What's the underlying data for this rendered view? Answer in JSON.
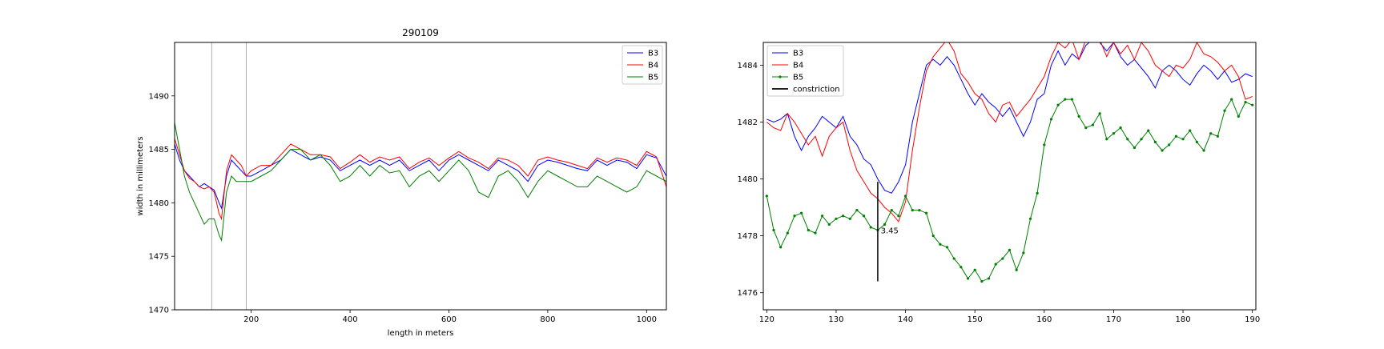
{
  "chart_data": [
    {
      "type": "line",
      "title": "290109",
      "xlabel": "length in meters",
      "ylabel": "width in millimeters",
      "xlim": [
        45,
        1040
      ],
      "ylim": [
        1470,
        1495
      ],
      "xticks": [
        200,
        400,
        600,
        800,
        1000
      ],
      "yticks": [
        1470,
        1475,
        1480,
        1485,
        1490
      ],
      "vlines": [
        120,
        190
      ],
      "legend_position": "upper right",
      "grid": false,
      "series": [
        {
          "name": "B3",
          "color": "#0000ff",
          "x": [
            45,
            55,
            65,
            75,
            85,
            95,
            105,
            115,
            125,
            135,
            140,
            150,
            160,
            170,
            180,
            190,
            200,
            220,
            240,
            260,
            280,
            300,
            320,
            340,
            360,
            380,
            400,
            420,
            440,
            460,
            480,
            500,
            520,
            540,
            560,
            580,
            600,
            620,
            640,
            660,
            680,
            700,
            720,
            740,
            760,
            780,
            800,
            820,
            840,
            860,
            880,
            900,
            920,
            940,
            960,
            980,
            1000,
            1020,
            1040
          ],
          "y": [
            1485.5,
            1484,
            1483,
            1482.5,
            1482,
            1481.5,
            1481.8,
            1481.5,
            1481.2,
            1480,
            1479.5,
            1482.5,
            1484,
            1483.5,
            1483,
            1482.5,
            1482.5,
            1483,
            1483.5,
            1484,
            1485,
            1484.5,
            1484,
            1484.3,
            1484,
            1483,
            1483.5,
            1484,
            1483.5,
            1484,
            1483.5,
            1484,
            1483,
            1483.5,
            1484,
            1483,
            1484,
            1484.5,
            1484,
            1483.5,
            1483,
            1484,
            1483.5,
            1483,
            1482,
            1483.5,
            1484,
            1483.8,
            1483.5,
            1483.2,
            1483,
            1484,
            1483.5,
            1484,
            1483.8,
            1483.2,
            1484.5,
            1484.2,
            1482.5
          ]
        },
        {
          "name": "B4",
          "color": "#ff0000",
          "x": [
            45,
            55,
            65,
            75,
            85,
            95,
            105,
            115,
            125,
            135,
            140,
            150,
            160,
            170,
            180,
            190,
            200,
            220,
            240,
            260,
            280,
            300,
            320,
            340,
            360,
            380,
            400,
            420,
            440,
            460,
            480,
            500,
            520,
            540,
            560,
            580,
            600,
            620,
            640,
            660,
            680,
            700,
            720,
            740,
            760,
            780,
            800,
            820,
            840,
            860,
            880,
            900,
            920,
            940,
            960,
            980,
            1000,
            1020,
            1040
          ],
          "y": [
            1486,
            1484.5,
            1483,
            1482.3,
            1482,
            1481.5,
            1481.3,
            1481.5,
            1481,
            1479,
            1478.5,
            1483,
            1484.5,
            1484,
            1483.5,
            1482.5,
            1483,
            1483.5,
            1483.5,
            1484.5,
            1485.5,
            1485,
            1484.5,
            1484.5,
            1484.3,
            1483.2,
            1483.8,
            1484.5,
            1483.8,
            1484.3,
            1484,
            1484.3,
            1483.2,
            1483.8,
            1484.2,
            1483.5,
            1484.2,
            1484.8,
            1484.2,
            1483.8,
            1483.2,
            1484.2,
            1484,
            1483.5,
            1482.5,
            1484,
            1484.3,
            1484,
            1483.8,
            1483.5,
            1483.2,
            1484.2,
            1483.8,
            1484.2,
            1484,
            1483.5,
            1484.8,
            1484.3,
            1481.5
          ]
        },
        {
          "name": "B5",
          "color": "#008000",
          "x": [
            45,
            55,
            65,
            75,
            85,
            95,
            105,
            115,
            125,
            135,
            140,
            150,
            160,
            170,
            180,
            190,
            200,
            220,
            240,
            260,
            280,
            300,
            320,
            340,
            360,
            380,
            400,
            420,
            440,
            460,
            480,
            500,
            520,
            540,
            560,
            580,
            600,
            620,
            640,
            660,
            680,
            700,
            720,
            740,
            760,
            780,
            800,
            820,
            840,
            860,
            880,
            900,
            920,
            940,
            960,
            980,
            1000,
            1020,
            1040
          ],
          "y": [
            1487.5,
            1485,
            1482.5,
            1481,
            1480,
            1479,
            1478,
            1478.5,
            1478.5,
            1477,
            1476.5,
            1481,
            1482.5,
            1482,
            1482,
            1482,
            1482,
            1482.5,
            1483,
            1484,
            1485,
            1485,
            1484,
            1484.5,
            1483.5,
            1482,
            1482.5,
            1483.5,
            1482.5,
            1483.5,
            1482.8,
            1483,
            1481.5,
            1482.5,
            1483,
            1482,
            1483,
            1484,
            1483,
            1481,
            1480.5,
            1482.5,
            1483,
            1482,
            1480.5,
            1482,
            1483,
            1482.5,
            1482,
            1481.5,
            1481.5,
            1482.5,
            1482,
            1481.5,
            1481,
            1481.5,
            1483,
            1482.5,
            1482
          ]
        }
      ]
    },
    {
      "type": "line",
      "title": "",
      "xlabel": "",
      "ylabel": "",
      "xlim": [
        119.5,
        190.5
      ],
      "ylim": [
        1475.4,
        1484.8
      ],
      "xticks": [
        120,
        130,
        140,
        150,
        160,
        170,
        180,
        190
      ],
      "yticks": [
        1476,
        1478,
        1480,
        1482,
        1484
      ],
      "legend_position": "upper left",
      "grid": false,
      "series": [
        {
          "name": "B3",
          "color": "#0000ff",
          "x": [
            120,
            121,
            122,
            123,
            124,
            125,
            126,
            127,
            128,
            129,
            130,
            131,
            132,
            133,
            134,
            135,
            136,
            137,
            138,
            139,
            140,
            141,
            142,
            143,
            144,
            145,
            146,
            147,
            148,
            149,
            150,
            151,
            152,
            153,
            154,
            155,
            156,
            157,
            158,
            159,
            160,
            161,
            162,
            163,
            164,
            165,
            166,
            167,
            168,
            169,
            170,
            171,
            172,
            173,
            174,
            175,
            176,
            177,
            178,
            179,
            180,
            181,
            182,
            183,
            184,
            185,
            186,
            187,
            188,
            189,
            190
          ],
          "y": [
            1482.1,
            1482.0,
            1482.1,
            1482.3,
            1481.5,
            1481.0,
            1481.5,
            1481.8,
            1482.2,
            1482.0,
            1481.8,
            1482.2,
            1481.5,
            1481.2,
            1480.7,
            1480.5,
            1480.0,
            1479.6,
            1479.5,
            1479.9,
            1480.5,
            1482.0,
            1483.0,
            1484.0,
            1484.2,
            1484.0,
            1484.3,
            1484.0,
            1483.5,
            1483.0,
            1482.6,
            1483.0,
            1482.7,
            1482.5,
            1482.2,
            1482.5,
            1482.0,
            1481.5,
            1482.0,
            1482.8,
            1483.0,
            1484.0,
            1484.5,
            1484.0,
            1484.4,
            1484.2,
            1484.7,
            1484.9,
            1484.8,
            1484.5,
            1484.8,
            1484.3,
            1484.0,
            1484.2,
            1483.9,
            1483.6,
            1483.2,
            1483.8,
            1484.0,
            1483.8,
            1483.5,
            1483.3,
            1483.7,
            1484.0,
            1483.8,
            1483.5,
            1483.8,
            1483.4,
            1483.5,
            1483.7,
            1483.6
          ]
        },
        {
          "name": "B4",
          "color": "#ff0000",
          "x": [
            120,
            121,
            122,
            123,
            124,
            125,
            126,
            127,
            128,
            129,
            130,
            131,
            132,
            133,
            134,
            135,
            136,
            137,
            138,
            139,
            140,
            141,
            142,
            143,
            144,
            145,
            146,
            147,
            148,
            149,
            150,
            151,
            152,
            153,
            154,
            155,
            156,
            157,
            158,
            159,
            160,
            161,
            162,
            163,
            164,
            165,
            166,
            167,
            168,
            169,
            170,
            171,
            172,
            173,
            174,
            175,
            176,
            177,
            178,
            179,
            180,
            181,
            182,
            183,
            184,
            185,
            186,
            187,
            188,
            189,
            190
          ],
          "y": [
            1482.0,
            1481.8,
            1481.7,
            1482.3,
            1482.0,
            1481.6,
            1481.2,
            1481.5,
            1480.8,
            1481.5,
            1481.8,
            1482.0,
            1481.0,
            1480.3,
            1479.9,
            1479.5,
            1479.3,
            1479.0,
            1478.8,
            1478.5,
            1479.2,
            1481.0,
            1482.5,
            1483.8,
            1484.3,
            1484.6,
            1484.9,
            1484.5,
            1483.7,
            1483.4,
            1483.0,
            1482.8,
            1482.3,
            1482.0,
            1482.6,
            1482.7,
            1482.2,
            1482.5,
            1482.8,
            1483.2,
            1483.6,
            1484.3,
            1484.8,
            1484.6,
            1484.9,
            1484.2,
            1484.9,
            1484.8,
            1484.9,
            1484.3,
            1484.8,
            1484.4,
            1484.7,
            1484.2,
            1484.8,
            1484.5,
            1484.0,
            1483.8,
            1483.6,
            1484.0,
            1483.9,
            1484.2,
            1484.8,
            1484.4,
            1484.3,
            1484.1,
            1483.8,
            1484.0,
            1483.6,
            1482.8,
            1482.9
          ]
        },
        {
          "name": "B5",
          "color": "#008000",
          "x": [
            120,
            121,
            122,
            123,
            124,
            125,
            126,
            127,
            128,
            129,
            130,
            131,
            132,
            133,
            134,
            135,
            136,
            137,
            138,
            139,
            140,
            141,
            142,
            143,
            144,
            145,
            146,
            147,
            148,
            149,
            150,
            151,
            152,
            153,
            154,
            155,
            156,
            157,
            158,
            159,
            160,
            161,
            162,
            163,
            164,
            165,
            166,
            167,
            168,
            169,
            170,
            171,
            172,
            173,
            174,
            175,
            176,
            177,
            178,
            179,
            180,
            181,
            182,
            183,
            184,
            185,
            186,
            187,
            188,
            189,
            190
          ],
          "y": [
            1479.4,
            1478.2,
            1477.6,
            1478.1,
            1478.7,
            1478.8,
            1478.2,
            1478.1,
            1478.7,
            1478.4,
            1478.6,
            1478.7,
            1478.6,
            1478.9,
            1478.7,
            1478.3,
            1478.2,
            1478.4,
            1478.9,
            1478.7,
            1479.4,
            1478.9,
            1478.9,
            1478.8,
            1478.0,
            1477.7,
            1477.6,
            1477.2,
            1476.9,
            1476.5,
            1476.8,
            1476.4,
            1476.5,
            1477.0,
            1477.2,
            1477.5,
            1476.8,
            1477.4,
            1478.6,
            1479.5,
            1481.2,
            1482.1,
            1482.6,
            1482.8,
            1482.8,
            1482.2,
            1481.8,
            1481.9,
            1482.3,
            1481.4,
            1481.6,
            1481.8,
            1481.4,
            1481.1,
            1481.4,
            1481.7,
            1481.3,
            1481.0,
            1481.2,
            1481.5,
            1481.4,
            1481.7,
            1481.3,
            1481.0,
            1481.6,
            1481.5,
            1482.4,
            1482.8,
            1482.2,
            1482.7,
            1482.6
          ]
        }
      ],
      "constriction": {
        "name": "constriction",
        "color": "#000000",
        "x": 136,
        "y_from": 1476.4,
        "y_to": 1479.9,
        "label": "3.45",
        "label_x": 137,
        "label_y": 1478.2
      }
    }
  ]
}
